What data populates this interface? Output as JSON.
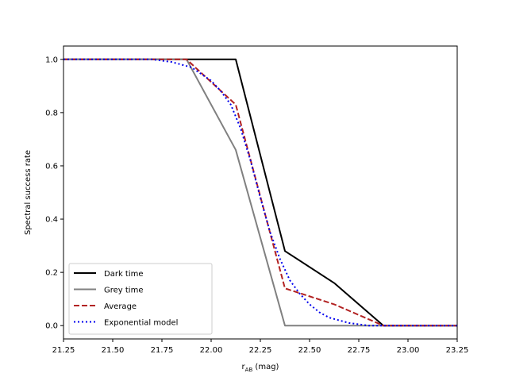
{
  "chart_data": {
    "type": "line",
    "xlabel_main": "r",
    "xlabel_sub": "AB",
    "xlabel_unit": " (mag)",
    "ylabel": "Spectral success rate",
    "xlim": [
      21.25,
      23.25
    ],
    "ylim": [
      -0.05,
      1.05
    ],
    "xticks": [
      "21.25",
      "21.50",
      "21.75",
      "22.00",
      "22.25",
      "22.50",
      "22.75",
      "23.00",
      "23.25"
    ],
    "yticks": [
      "0.0",
      "0.2",
      "0.4",
      "0.6",
      "0.8",
      "1.0"
    ],
    "grid": false,
    "legend_position": "lower-left",
    "series": [
      {
        "name": "Dark time",
        "color": "#000000",
        "style": "solid",
        "x": [
          21.25,
          21.875,
          22.125,
          22.375,
          22.625,
          22.875,
          23.25
        ],
        "y": [
          1.0,
          1.0,
          1.0,
          0.28,
          0.16,
          0.0,
          0.0
        ]
      },
      {
        "name": "Grey time",
        "color": "#808080",
        "style": "solid",
        "x": [
          21.25,
          21.875,
          22.125,
          22.375,
          22.625,
          22.875,
          23.25
        ],
        "y": [
          1.0,
          1.0,
          0.66,
          0.0,
          0.0,
          0.0,
          0.0
        ]
      },
      {
        "name": "Average",
        "color": "#b22222",
        "style": "dashed",
        "x": [
          21.25,
          21.875,
          22.125,
          22.375,
          22.625,
          22.875,
          23.25
        ],
        "y": [
          1.0,
          1.0,
          0.83,
          0.14,
          0.08,
          0.0,
          0.0
        ]
      },
      {
        "name": "Exponential model",
        "color": "#0000ee",
        "style": "dotted",
        "x": [
          21.25,
          21.7,
          21.8,
          21.9,
          22.0,
          22.05,
          22.1,
          22.15,
          22.2,
          22.25,
          22.3,
          22.35,
          22.4,
          22.45,
          22.5,
          22.55,
          22.6,
          22.7,
          22.8,
          22.9,
          23.25
        ],
        "y": [
          1.0,
          1.0,
          0.99,
          0.97,
          0.92,
          0.88,
          0.83,
          0.74,
          0.62,
          0.48,
          0.35,
          0.25,
          0.17,
          0.12,
          0.08,
          0.05,
          0.03,
          0.01,
          0.0,
          0.0,
          0.0
        ]
      }
    ]
  }
}
